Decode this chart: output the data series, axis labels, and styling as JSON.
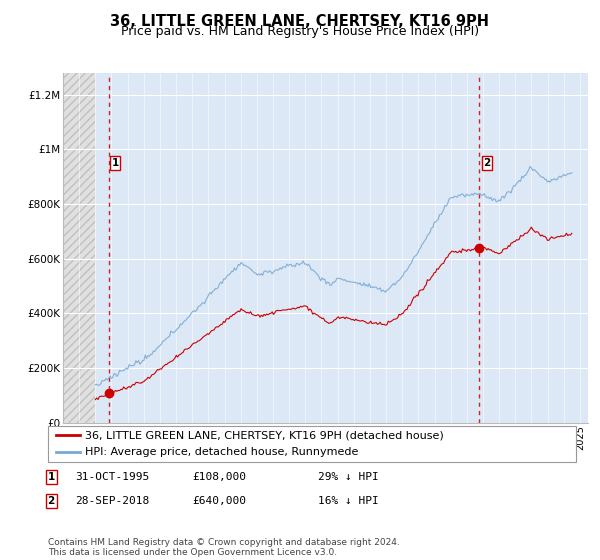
{
  "title": "36, LITTLE GREEN LANE, CHERTSEY, KT16 9PH",
  "subtitle": "Price paid vs. HM Land Registry's House Price Index (HPI)",
  "ylabel_ticks": [
    "£0",
    "£200K",
    "£400K",
    "£600K",
    "£800K",
    "£1M",
    "£1.2M"
  ],
  "ytick_values": [
    0,
    200000,
    400000,
    600000,
    800000,
    1000000,
    1200000
  ],
  "ylim": [
    0,
    1280000
  ],
  "xlim_start": 1993.0,
  "xlim_end": 2025.5,
  "data_start": 1995.0,
  "background_color": "#ffffff",
  "plot_bg_color": "#dce8f5",
  "hatch_bg_color": "#e8e8e8",
  "grid_color": "#ffffff",
  "sale1_x": 1995.833,
  "sale1_y": 108000,
  "sale2_x": 2018.75,
  "sale2_y": 640000,
  "sale_color": "#cc0000",
  "hpi_color": "#7aa8d4",
  "vline_color": "#cc0000",
  "legend1_text": "36, LITTLE GREEN LANE, CHERTSEY, KT16 9PH (detached house)",
  "legend2_text": "HPI: Average price, detached house, Runnymede",
  "footnote": "Contains HM Land Registry data © Crown copyright and database right 2024.\nThis data is licensed under the Open Government Licence v3.0.",
  "title_fontsize": 10.5,
  "subtitle_fontsize": 9,
  "tick_fontsize": 7.5,
  "legend_fontsize": 8,
  "note_fontsize": 8,
  "footnote_fontsize": 6.5
}
